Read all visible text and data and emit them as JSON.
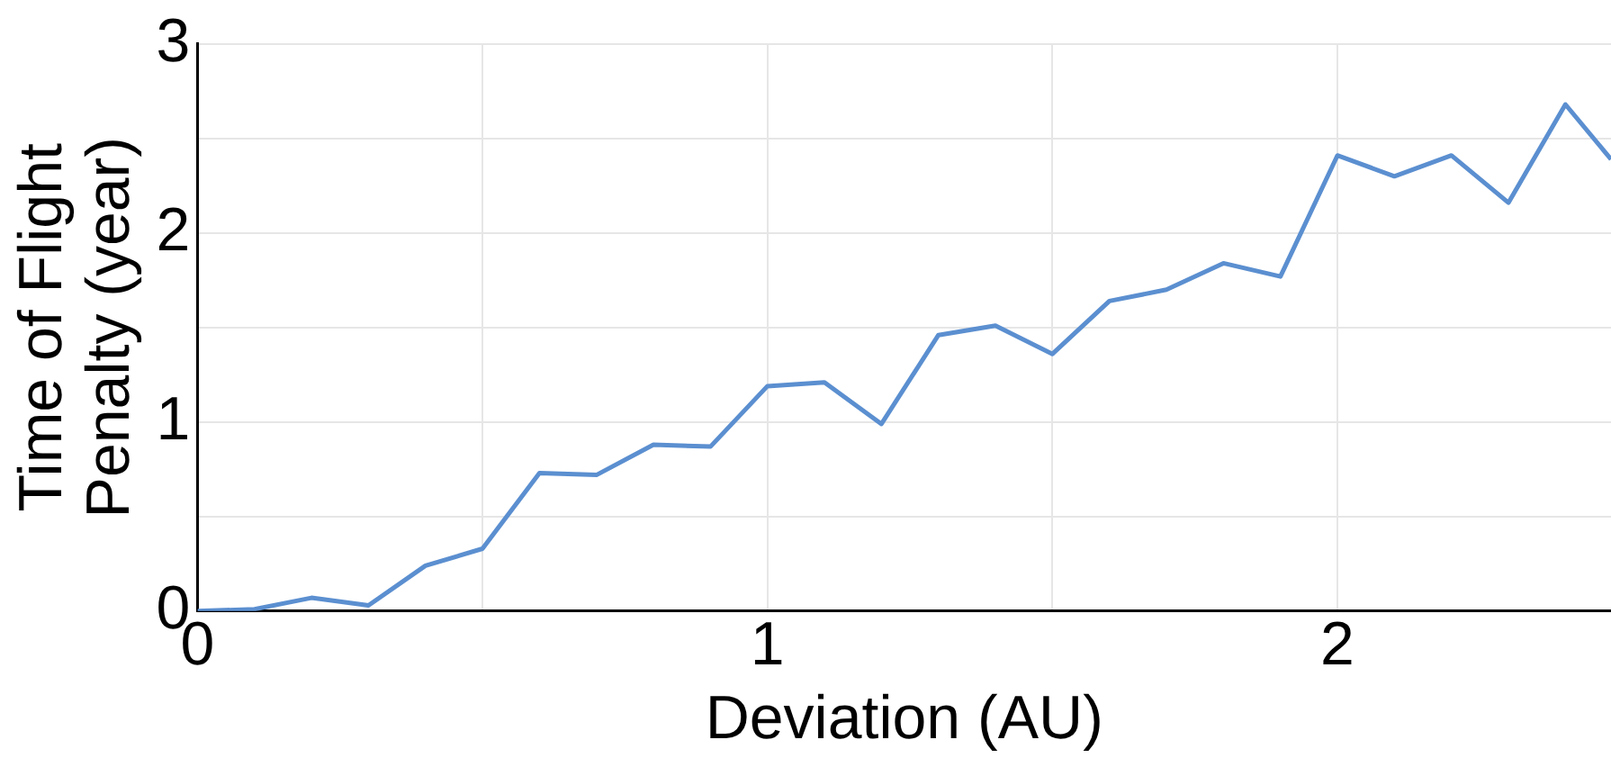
{
  "chart_data": {
    "type": "line",
    "xlabel": "Deviation (AU)",
    "ylabel": "Time of Flight\nPenalty (year)",
    "x": [
      0,
      0.1,
      0.2,
      0.3,
      0.4,
      0.5,
      0.6,
      0.7,
      0.8,
      0.9,
      1.0,
      1.1,
      1.2,
      1.3,
      1.4,
      1.5,
      1.6,
      1.7,
      1.8,
      1.9,
      2.0,
      2.1,
      2.2,
      2.3,
      2.4,
      2.48
    ],
    "series": [
      {
        "color": "#5b8fd0",
        "values": [
          0,
          0.01,
          0.07,
          0.03,
          0.24,
          0.33,
          0.73,
          0.72,
          0.88,
          0.87,
          1.19,
          1.21,
          0.99,
          1.46,
          1.51,
          1.36,
          1.64,
          1.7,
          1.84,
          1.77,
          2.41,
          2.3,
          2.41,
          2.16,
          2.68,
          2.39
        ]
      }
    ],
    "xlim": [
      0,
      2.48
    ],
    "xticks": [
      0,
      {
        "value": 0.5,
        "label": null
      },
      1,
      {
        "value": 1.5,
        "label": null
      },
      2
    ],
    "ylim": [
      0,
      3
    ],
    "yticks": [
      0,
      {
        "value": 0.5,
        "label": null
      },
      1,
      {
        "value": 1.5,
        "label": null
      },
      2,
      {
        "value": 2.5,
        "label": null
      },
      3
    ],
    "grid": true,
    "marker": "none",
    "line_style": "solid",
    "legend": false
  }
}
